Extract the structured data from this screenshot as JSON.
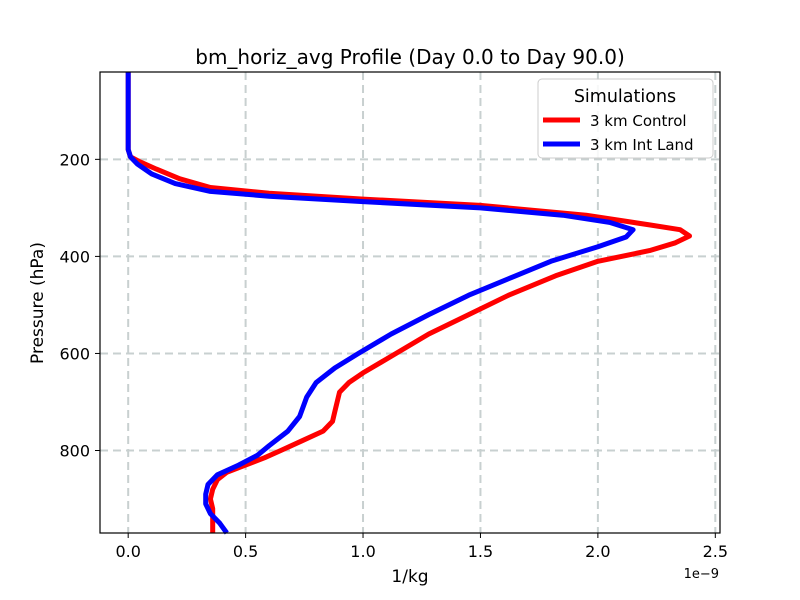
{
  "chart_data": {
    "type": "line",
    "title": "bm_horiz_avg Profile (Day 0.0 to Day 90.0)",
    "xlabel": "1/kg",
    "ylabel": "Pressure (hPa)",
    "x_offset_label": "1e−9",
    "x_scale_note": "x values are in units of 1e-9 per kg",
    "xlim": [
      -0.12,
      2.52
    ],
    "ylim": [
      970,
      20
    ],
    "y_inverted": true,
    "grid": true,
    "x_ticks": [
      0.0,
      0.5,
      1.0,
      1.5,
      2.0,
      2.5
    ],
    "x_tick_labels": [
      "0.0",
      "0.5",
      "1.0",
      "1.5",
      "2.0",
      "2.5"
    ],
    "y_ticks": [
      200,
      400,
      600,
      800
    ],
    "y_tick_labels": [
      "200",
      "400",
      "600",
      "800"
    ],
    "legend": {
      "title": "Simulations",
      "position": "top-right"
    },
    "series": [
      {
        "name": "3 km Control",
        "color": "#ff0000",
        "points": [
          [
            0.0,
            20
          ],
          [
            0.0,
            100
          ],
          [
            0.0,
            180
          ],
          [
            0.01,
            195
          ],
          [
            0.05,
            205
          ],
          [
            0.12,
            220
          ],
          [
            0.22,
            240
          ],
          [
            0.35,
            258
          ],
          [
            0.6,
            270
          ],
          [
            1.0,
            282
          ],
          [
            1.5,
            295
          ],
          [
            1.95,
            315
          ],
          [
            2.22,
            335
          ],
          [
            2.35,
            345
          ],
          [
            2.39,
            358
          ],
          [
            2.33,
            372
          ],
          [
            2.22,
            388
          ],
          [
            2.0,
            410
          ],
          [
            1.82,
            440
          ],
          [
            1.62,
            480
          ],
          [
            1.45,
            520
          ],
          [
            1.28,
            560
          ],
          [
            1.14,
            600
          ],
          [
            1.0,
            640
          ],
          [
            0.94,
            660
          ],
          [
            0.9,
            680
          ],
          [
            0.88,
            720
          ],
          [
            0.87,
            740
          ],
          [
            0.83,
            760
          ],
          [
            0.74,
            780
          ],
          [
            0.65,
            800
          ],
          [
            0.58,
            815
          ],
          [
            0.5,
            830
          ],
          [
            0.42,
            845
          ],
          [
            0.38,
            860
          ],
          [
            0.36,
            880
          ],
          [
            0.35,
            900
          ],
          [
            0.36,
            920
          ],
          [
            0.36,
            940
          ],
          [
            0.36,
            970
          ]
        ]
      },
      {
        "name": "3 km Int Land",
        "color": "#0000ff",
        "points": [
          [
            0.0,
            20
          ],
          [
            0.0,
            100
          ],
          [
            0.0,
            180
          ],
          [
            0.01,
            195
          ],
          [
            0.04,
            210
          ],
          [
            0.1,
            230
          ],
          [
            0.2,
            250
          ],
          [
            0.35,
            266
          ],
          [
            0.6,
            276
          ],
          [
            1.0,
            287
          ],
          [
            1.5,
            300
          ],
          [
            1.85,
            315
          ],
          [
            2.05,
            330
          ],
          [
            2.15,
            345
          ],
          [
            2.12,
            360
          ],
          [
            2.0,
            380
          ],
          [
            1.8,
            410
          ],
          [
            1.65,
            440
          ],
          [
            1.45,
            480
          ],
          [
            1.28,
            520
          ],
          [
            1.12,
            560
          ],
          [
            0.98,
            600
          ],
          [
            0.88,
            630
          ],
          [
            0.8,
            660
          ],
          [
            0.76,
            690
          ],
          [
            0.73,
            730
          ],
          [
            0.68,
            760
          ],
          [
            0.6,
            790
          ],
          [
            0.55,
            810
          ],
          [
            0.47,
            830
          ],
          [
            0.38,
            850
          ],
          [
            0.34,
            870
          ],
          [
            0.33,
            890
          ],
          [
            0.33,
            910
          ],
          [
            0.35,
            930
          ],
          [
            0.39,
            950
          ],
          [
            0.42,
            970
          ]
        ]
      }
    ]
  }
}
